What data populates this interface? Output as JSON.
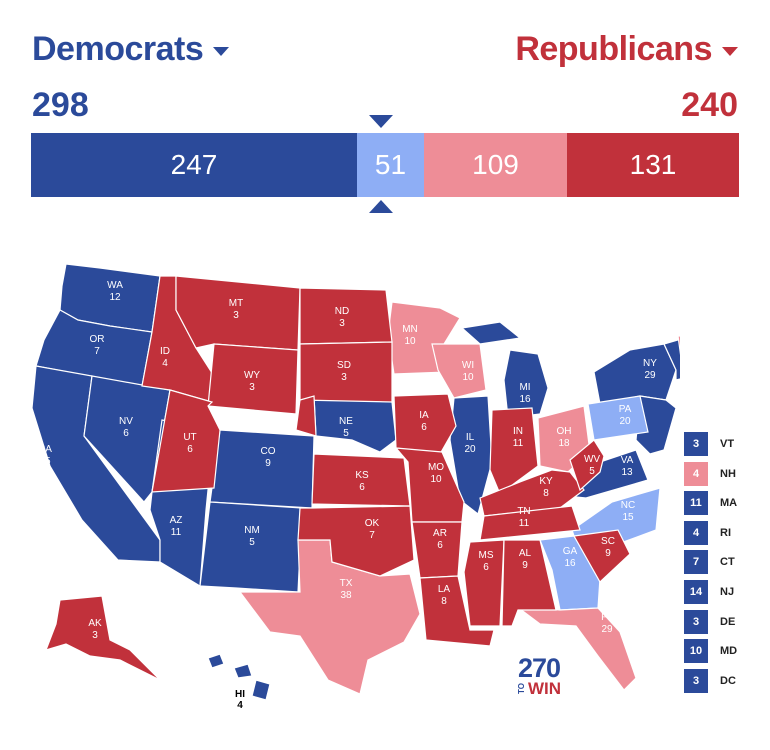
{
  "colors": {
    "safe_dem": "#2b4a9a",
    "lean_dem": "#8eaef5",
    "lean_rep": "#ee8d97",
    "safe_rep": "#c1313b",
    "bar_safe_dem": "#2b4a9a",
    "bar_lean_dem": "#8eaef5",
    "bar_lean_rep": "#ee8d97",
    "bar_safe_rep": "#c1313b"
  },
  "header": {
    "dem_label": "Democrats",
    "rep_label": "Republicans",
    "dem_total": "298",
    "rep_total": "240"
  },
  "bar": {
    "safe_dem": "247",
    "lean_dem": "51",
    "lean_rep": "109",
    "safe_rep": "131"
  },
  "states": {
    "WA": {
      "abbr": "WA",
      "votes": "12"
    },
    "OR": {
      "abbr": "OR",
      "votes": "7"
    },
    "CA": {
      "abbr": "CA",
      "votes": "55"
    },
    "NV": {
      "abbr": "NV",
      "votes": "6"
    },
    "ID": {
      "abbr": "ID",
      "votes": "4"
    },
    "MT": {
      "abbr": "MT",
      "votes": "3"
    },
    "WY": {
      "abbr": "WY",
      "votes": "3"
    },
    "UT": {
      "abbr": "UT",
      "votes": "6"
    },
    "AZ": {
      "abbr": "AZ",
      "votes": "11"
    },
    "CO": {
      "abbr": "CO",
      "votes": "9"
    },
    "NM": {
      "abbr": "NM",
      "votes": "5"
    },
    "ND": {
      "abbr": "ND",
      "votes": "3"
    },
    "SD": {
      "abbr": "SD",
      "votes": "3"
    },
    "NE": {
      "abbr": "NE",
      "votes": "5"
    },
    "KS": {
      "abbr": "KS",
      "votes": "6"
    },
    "OK": {
      "abbr": "OK",
      "votes": "7"
    },
    "TX": {
      "abbr": "TX",
      "votes": "38"
    },
    "MN": {
      "abbr": "MN",
      "votes": "10"
    },
    "IA": {
      "abbr": "IA",
      "votes": "6"
    },
    "MO": {
      "abbr": "MO",
      "votes": "10"
    },
    "AR": {
      "abbr": "AR",
      "votes": "6"
    },
    "LA": {
      "abbr": "LA",
      "votes": "8"
    },
    "WI": {
      "abbr": "WI",
      "votes": "10"
    },
    "IL": {
      "abbr": "IL",
      "votes": "20"
    },
    "MI": {
      "abbr": "MI",
      "votes": "16"
    },
    "IN": {
      "abbr": "IN",
      "votes": "11"
    },
    "OH": {
      "abbr": "OH",
      "votes": "18"
    },
    "KY": {
      "abbr": "KY",
      "votes": "8"
    },
    "TN": {
      "abbr": "TN",
      "votes": "11"
    },
    "MS": {
      "abbr": "MS",
      "votes": "6"
    },
    "AL": {
      "abbr": "AL",
      "votes": "9"
    },
    "GA": {
      "abbr": "GA",
      "votes": "16"
    },
    "FL": {
      "abbr": "FL",
      "votes": "29"
    },
    "SC": {
      "abbr": "SC",
      "votes": "9"
    },
    "NC": {
      "abbr": "NC",
      "votes": "15"
    },
    "VA": {
      "abbr": "VA",
      "votes": "13"
    },
    "WV": {
      "abbr": "WV",
      "votes": "5"
    },
    "PA": {
      "abbr": "PA",
      "votes": "20"
    },
    "NY": {
      "abbr": "NY",
      "votes": "29"
    },
    "ME": {
      "abbr": "ME",
      "votes": "4"
    },
    "AK": {
      "abbr": "AK",
      "votes": "3"
    },
    "HI": {
      "abbr": "HI",
      "votes": "4"
    }
  },
  "small_states": [
    {
      "abbr": "VT",
      "votes": "3",
      "rating": "safe_dem"
    },
    {
      "abbr": "NH",
      "votes": "4",
      "rating": "lean_rep"
    },
    {
      "abbr": "MA",
      "votes": "11",
      "rating": "safe_dem"
    },
    {
      "abbr": "RI",
      "votes": "4",
      "rating": "safe_dem"
    },
    {
      "abbr": "CT",
      "votes": "7",
      "rating": "safe_dem"
    },
    {
      "abbr": "NJ",
      "votes": "14",
      "rating": "safe_dem"
    },
    {
      "abbr": "DE",
      "votes": "3",
      "rating": "safe_dem"
    },
    {
      "abbr": "MD",
      "votes": "10",
      "rating": "safe_dem"
    },
    {
      "abbr": "DC",
      "votes": "3",
      "rating": "safe_dem"
    }
  ],
  "logo": {
    "number": "270",
    "to": "TO",
    "win": "WIN"
  }
}
